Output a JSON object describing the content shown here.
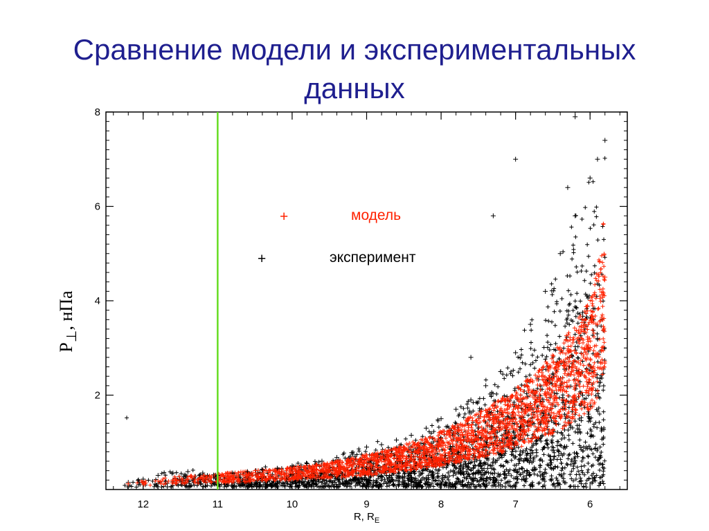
{
  "slide": {
    "title": "Сравнение модели и экспериментальных данных"
  },
  "chart_data": {
    "type": "scatter",
    "title": "",
    "xlabel": "R, R",
    "xlabel_subscript": "E",
    "ylabel": "P",
    "ylabel_subscript": "⊥",
    "ylabel_suffix": ", нПа",
    "xlim": [
      12.5,
      5.5
    ],
    "x_reversed": true,
    "ylim": [
      0,
      8
    ],
    "x_ticks": [
      12,
      11,
      10,
      9,
      8,
      7,
      6
    ],
    "y_ticks": [
      2,
      4,
      6,
      8
    ],
    "grid": false,
    "legend_position": "upper-center",
    "vertical_line": {
      "x": 11.0,
      "color": "#66dd22"
    },
    "series": [
      {
        "name": "эксперимент",
        "color": "#000000",
        "marker": "+",
        "x": [
          12.2,
          12.0,
          11.8,
          11.6,
          11.4,
          11.2,
          11.0,
          10.8,
          10.6,
          10.4,
          10.2,
          10.0,
          9.8,
          9.6,
          9.4,
          9.2,
          9.0,
          8.8,
          8.6,
          8.4,
          8.2,
          8.0,
          7.8,
          7.6,
          7.4,
          7.2,
          7.0,
          6.8,
          6.6,
          6.4,
          6.2,
          6.0,
          5.9,
          5.8,
          7.0,
          6.2,
          7.3,
          6.3,
          7.6,
          6.1,
          5.9
        ],
        "y": [
          0.15,
          0.22,
          0.3,
          0.35,
          0.38,
          0.35,
          0.3,
          0.35,
          0.38,
          0.42,
          0.45,
          0.5,
          0.55,
          0.6,
          0.68,
          0.78,
          0.9,
          0.95,
          1.05,
          1.15,
          1.3,
          1.5,
          1.7,
          1.9,
          2.2,
          2.5,
          2.9,
          3.5,
          4.2,
          5.0,
          5.8,
          6.6,
          7.0,
          7.4,
          7.0,
          7.9,
          5.8,
          6.4,
          2.8,
          2.0,
          3.2
        ]
      },
      {
        "name": "модель",
        "color": "#ff2200",
        "marker": "+",
        "x": [
          12.2,
          12.0,
          11.8,
          11.6,
          11.4,
          11.2,
          11.0,
          10.8,
          10.6,
          10.4,
          10.2,
          10.0,
          9.8,
          9.6,
          9.4,
          9.2,
          9.0,
          8.8,
          8.6,
          8.4,
          8.2,
          8.0,
          7.8,
          7.6,
          7.4,
          7.2,
          7.0,
          6.8,
          6.6,
          6.4,
          6.2,
          6.0,
          5.9,
          5.8
        ],
        "y": [
          0.12,
          0.15,
          0.18,
          0.2,
          0.22,
          0.24,
          0.25,
          0.27,
          0.29,
          0.31,
          0.33,
          0.35,
          0.38,
          0.41,
          0.45,
          0.5,
          0.55,
          0.6,
          0.67,
          0.74,
          0.82,
          0.92,
          1.03,
          1.15,
          1.28,
          1.42,
          1.58,
          1.78,
          2.0,
          2.3,
          2.6,
          3.0,
          3.5,
          4.5
        ]
      }
    ]
  }
}
